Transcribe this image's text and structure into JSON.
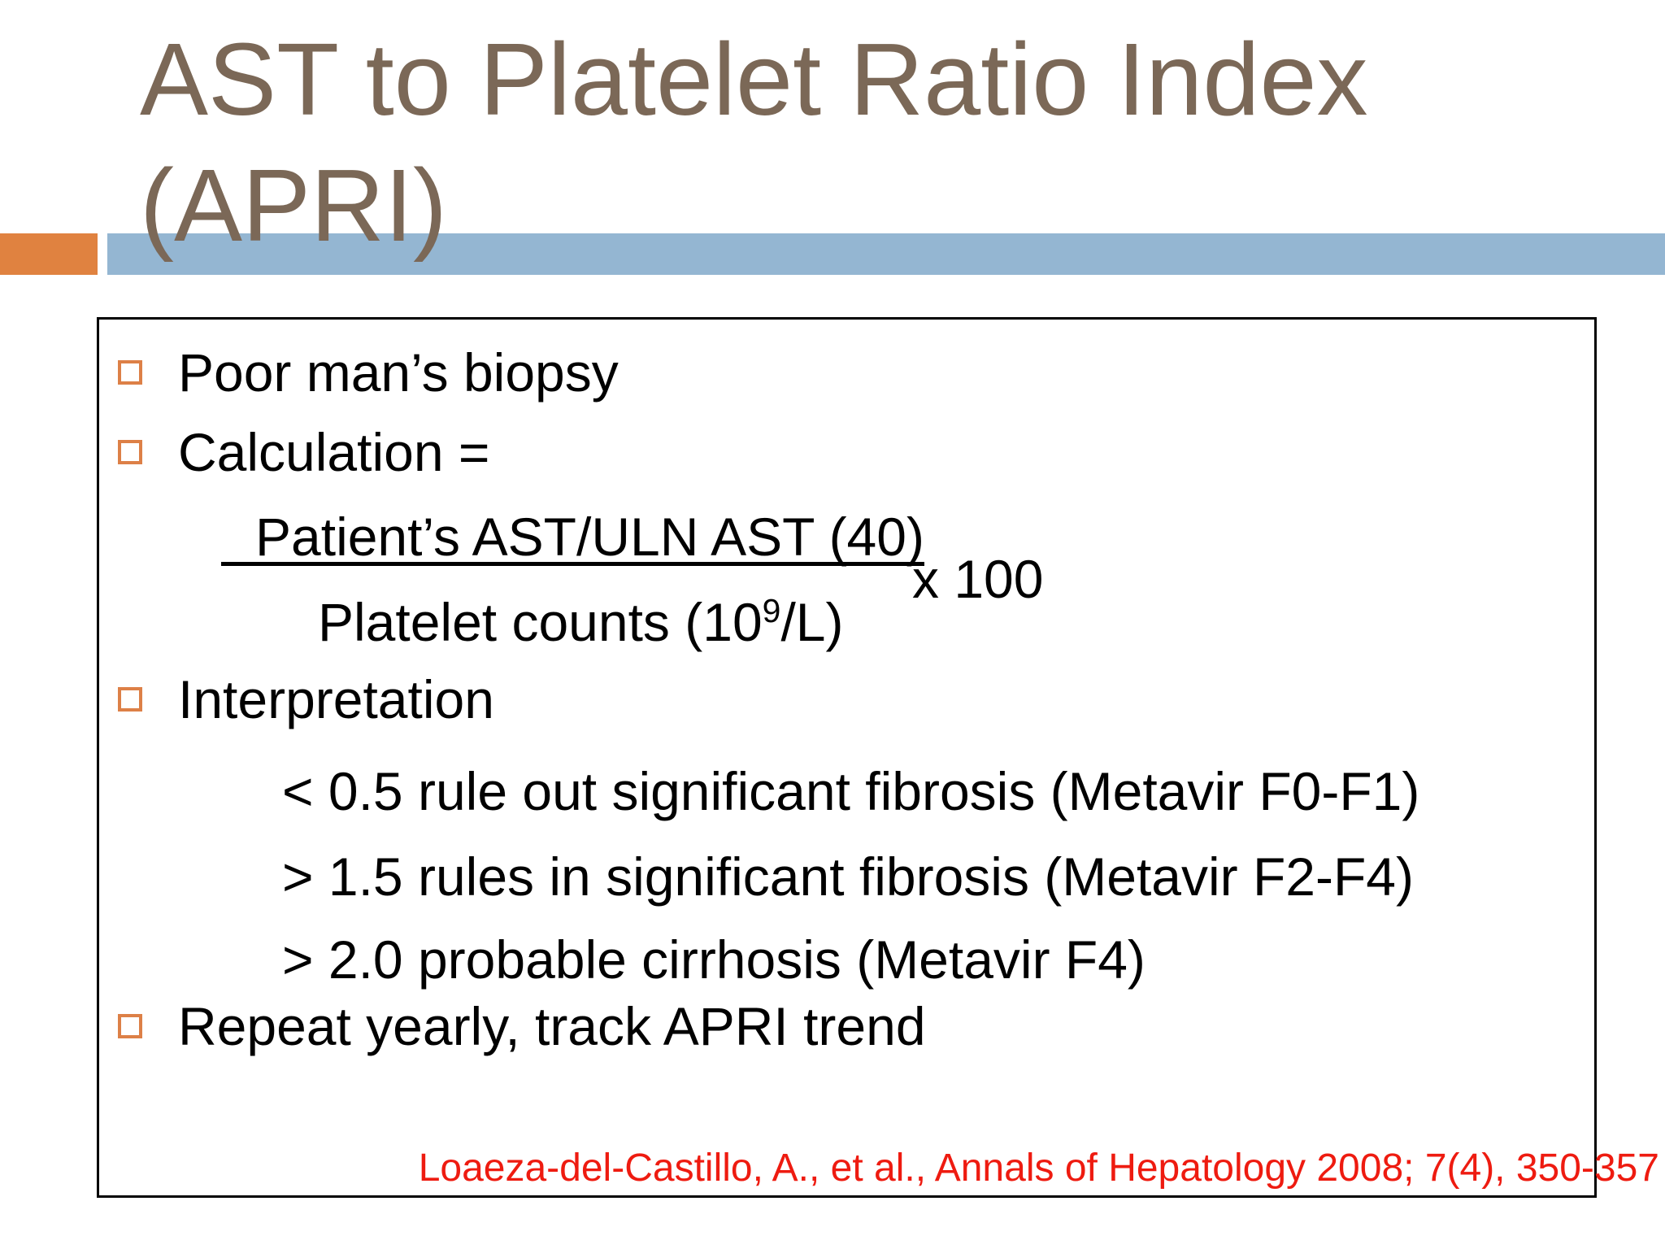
{
  "title": {
    "line1": "AST to Platelet Ratio Index",
    "line2": "(APRI)"
  },
  "colors": {
    "title_brown": "#7b6857",
    "accent_orange": "#e08240",
    "accent_blue": "#94b6d2",
    "bullet_orange": "#dd8047",
    "citation_red": "#ee1b10",
    "body_text": "#000000",
    "box_border": "#000000"
  },
  "bullets": [
    {
      "text": "Poor man’s biopsy"
    },
    {
      "text": "Calculation ="
    },
    {
      "text": "Interpretation"
    },
    {
      "text": "Repeat yearly, track APRI trend"
    }
  ],
  "formula": {
    "numerator": "Patient’s AST/ULN AST (40)",
    "denominator_pre": "Platelet counts (10",
    "denominator_sup": "9",
    "denominator_post": "/L)",
    "multiplier": "x 100"
  },
  "interpretation_lines": [
    {
      "text": "< 0.5 rule out significant fibrosis (Metavir F0-F1)"
    },
    {
      "text": "> 1.5 rules in significant fibrosis (Metavir F2-F4)"
    },
    {
      "text": "> 2.0 probable cirrhosis (Metavir F4)"
    }
  ],
  "citation": "Loaeza-del-Castillo, A., et al., Annals of Hepatology 2008; 7(4), 350-357"
}
